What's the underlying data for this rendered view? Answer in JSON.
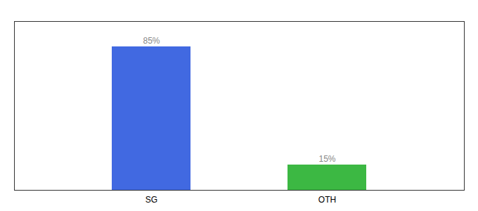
{
  "chart_data": {
    "type": "bar",
    "categories": [
      "SG",
      "OTH"
    ],
    "values": [
      85,
      15
    ],
    "value_labels": [
      "85%",
      "15%"
    ],
    "data_labels": true,
    "colors": [
      "#4169E1",
      "#3CB843"
    ],
    "ylim": [
      0,
      100
    ],
    "tick_labels": "x",
    "grid": false
  }
}
